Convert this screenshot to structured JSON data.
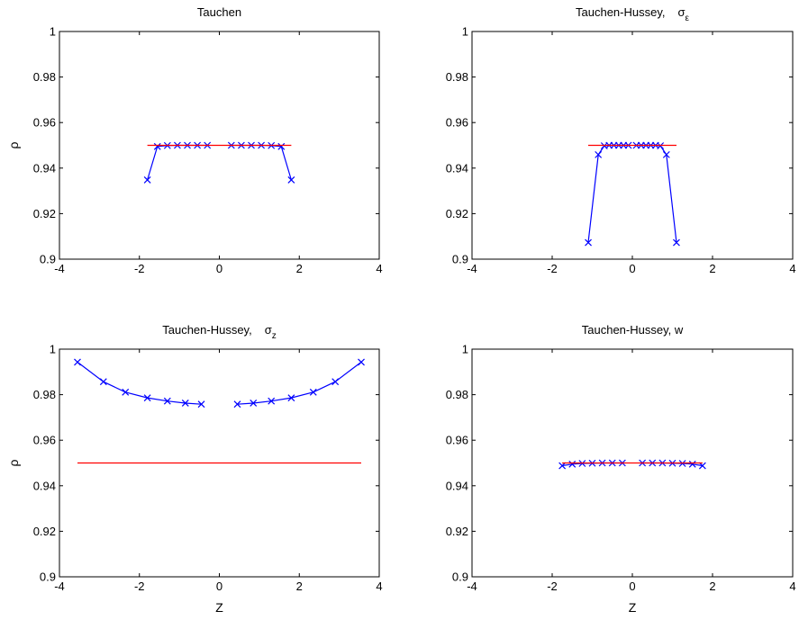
{
  "chart_data": [
    {
      "type": "line",
      "title": "Tauchen",
      "title_symbol": "",
      "title_symbol_sub": "",
      "xlabel": "",
      "ylabel": "ρ",
      "xlim": [
        -4,
        4
      ],
      "ylim": [
        0.9,
        1.0
      ],
      "xticks": [
        -4,
        -2,
        0,
        2,
        4
      ],
      "yticks": [
        0.9,
        0.92,
        0.94,
        0.96,
        0.98,
        1
      ],
      "xtick_labels": [
        "-4",
        "-2",
        "0",
        "2",
        "4"
      ],
      "ytick_labels": [
        "0.9",
        "0.92",
        "0.94",
        "0.96",
        "0.98",
        "1"
      ],
      "grid": false,
      "series": [
        {
          "color": "#0000ff",
          "marker": "x",
          "segments": [
            {
              "x": [
                -1.8,
                -1.55,
                -1.3,
                -1.05,
                -0.8,
                -0.55,
                -0.3
              ],
              "y": [
                0.9348,
                0.9495,
                0.9499,
                0.95,
                0.95,
                0.95,
                0.95
              ]
            },
            {
              "x": [
                0.3,
                0.55,
                0.8,
                1.05,
                1.3,
                1.55,
                1.8
              ],
              "y": [
                0.95,
                0.95,
                0.95,
                0.95,
                0.9499,
                0.9495,
                0.9348
              ]
            }
          ]
        },
        {
          "color": "#ff0000",
          "marker": "none",
          "segments": [
            {
              "x": [
                -1.8,
                1.8
              ],
              "y": [
                0.95,
                0.95
              ]
            }
          ]
        }
      ]
    },
    {
      "type": "line",
      "title": "Tauchen-Hussey,",
      "title_symbol": "σ",
      "title_symbol_sub": "ε",
      "xlabel": "",
      "ylabel": "",
      "xlim": [
        -4,
        4
      ],
      "ylim": [
        0.9,
        1.0
      ],
      "xticks": [
        -4,
        -2,
        0,
        2,
        4
      ],
      "yticks": [
        0.9,
        0.92,
        0.94,
        0.96,
        0.98,
        1
      ],
      "xtick_labels": [
        "-4",
        "-2",
        "0",
        "2",
        "4"
      ],
      "ytick_labels": [
        "0.9",
        "0.92",
        "0.94",
        "0.96",
        "0.98",
        "1"
      ],
      "grid": false,
      "series": [
        {
          "color": "#0000ff",
          "marker": "x",
          "segments": [
            {
              "x": [
                -1.1,
                -0.85,
                -0.7,
                -0.58,
                -0.46,
                -0.34,
                -0.22,
                -0.1
              ],
              "y": [
                0.9073,
                0.9459,
                0.9498,
                0.95,
                0.95,
                0.95,
                0.95,
                0.95
              ]
            },
            {
              "x": [
                0.1,
                0.22,
                0.34,
                0.46,
                0.58,
                0.7,
                0.85,
                1.1
              ],
              "y": [
                0.95,
                0.95,
                0.95,
                0.95,
                0.95,
                0.9498,
                0.9459,
                0.9073
              ]
            }
          ]
        },
        {
          "color": "#ff0000",
          "marker": "none",
          "segments": [
            {
              "x": [
                -1.1,
                1.1
              ],
              "y": [
                0.95,
                0.95
              ]
            }
          ]
        }
      ]
    },
    {
      "type": "line",
      "title": "Tauchen-Hussey,",
      "title_symbol": "σ",
      "title_symbol_sub": "z",
      "xlabel": "Z",
      "ylabel": "ρ",
      "xlim": [
        -4,
        4
      ],
      "ylim": [
        0.9,
        1.0
      ],
      "xticks": [
        -4,
        -2,
        0,
        2,
        4
      ],
      "yticks": [
        0.9,
        0.92,
        0.94,
        0.96,
        0.98,
        1
      ],
      "xtick_labels": [
        "-4",
        "-2",
        "0",
        "2",
        "4"
      ],
      "ytick_labels": [
        "0.9",
        "0.92",
        "0.94",
        "0.96",
        "0.98",
        "1"
      ],
      "grid": false,
      "series": [
        {
          "color": "#0000ff",
          "marker": "x",
          "segments": [
            {
              "x": [
                -3.55,
                -2.9,
                -2.35,
                -1.8,
                -1.3,
                -0.85,
                -0.45
              ],
              "y": [
                0.9943,
                0.9857,
                0.9811,
                0.9786,
                0.9772,
                0.9763,
                0.9758
              ]
            },
            {
              "x": [
                0.45,
                0.85,
                1.3,
                1.8,
                2.35,
                2.9,
                3.55
              ],
              "y": [
                0.9758,
                0.9763,
                0.9772,
                0.9786,
                0.9811,
                0.9857,
                0.9943
              ]
            }
          ]
        },
        {
          "color": "#ff0000",
          "marker": "none",
          "segments": [
            {
              "x": [
                -3.55,
                3.55
              ],
              "y": [
                0.95,
                0.95
              ]
            }
          ]
        }
      ]
    },
    {
      "type": "line",
      "title": "Tauchen-Hussey, w",
      "title_symbol": "",
      "title_symbol_sub": "",
      "xlabel": "Z",
      "ylabel": "",
      "xlim": [
        -4,
        4
      ],
      "ylim": [
        0.9,
        1.0
      ],
      "xticks": [
        -4,
        -2,
        0,
        2,
        4
      ],
      "yticks": [
        0.9,
        0.92,
        0.94,
        0.96,
        0.98,
        1
      ],
      "xtick_labels": [
        "-4",
        "-2",
        "0",
        "2",
        "4"
      ],
      "ytick_labels": [
        "0.9",
        "0.92",
        "0.94",
        "0.96",
        "0.98",
        "1"
      ],
      "grid": false,
      "series": [
        {
          "color": "#0000ff",
          "marker": "x",
          "segments": [
            {
              "x": [
                -1.75,
                -1.5,
                -1.25,
                -1.0,
                -0.75,
                -0.5,
                -0.25
              ],
              "y": [
                0.9488,
                0.9495,
                0.9498,
                0.9499,
                0.95,
                0.95,
                0.95
              ]
            },
            {
              "x": [
                0.25,
                0.5,
                0.75,
                1.0,
                1.25,
                1.5,
                1.75
              ],
              "y": [
                0.95,
                0.95,
                0.95,
                0.9499,
                0.9498,
                0.9495,
                0.9488
              ]
            }
          ]
        },
        {
          "color": "#ff0000",
          "marker": "none",
          "segments": [
            {
              "x": [
                -1.75,
                1.75
              ],
              "y": [
                0.95,
                0.95
              ]
            }
          ]
        }
      ]
    }
  ]
}
